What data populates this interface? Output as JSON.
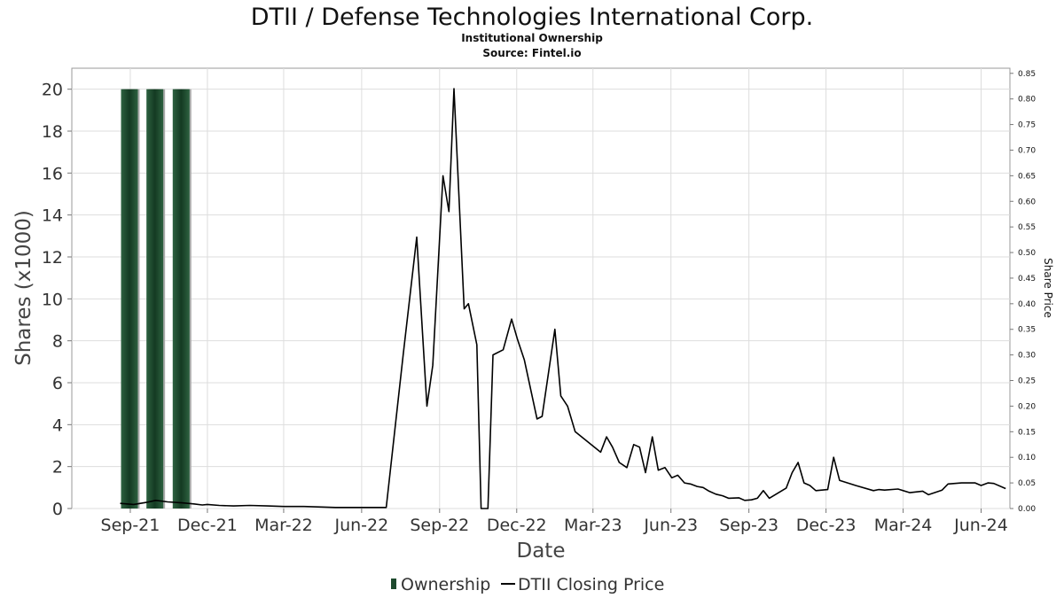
{
  "chart_data": {
    "type": "bar+line",
    "title": "DTII / Defense Technologies International Corp.",
    "subtitle": "Institutional Ownership",
    "source": "Source: Fintel.io",
    "xlabel": "Date",
    "ylabel_left": "Shares (x1000)",
    "ylabel_right": "Share Price",
    "x_range": [
      "2021-06-24",
      "2024-07-05"
    ],
    "ylim_left": [
      0,
      21
    ],
    "ylim_right": [
      0,
      0.86
    ],
    "yticks_left": [
      "0",
      "2",
      "4",
      "6",
      "8",
      "10",
      "12",
      "14",
      "16",
      "18",
      "20"
    ],
    "yticks_right": [
      "0.00",
      "0.05",
      "0.10",
      "0.15",
      "0.20",
      "0.25",
      "0.30",
      "0.35",
      "0.40",
      "0.45",
      "0.50",
      "0.55",
      "0.60",
      "0.65",
      "0.70",
      "0.75",
      "0.80",
      "0.85"
    ],
    "xticks": [
      {
        "label": "Sep-21",
        "date": "2021-09-01"
      },
      {
        "label": "Dec-21",
        "date": "2021-12-01"
      },
      {
        "label": "Mar-22",
        "date": "2022-03-01"
      },
      {
        "label": "Jun-22",
        "date": "2022-06-01"
      },
      {
        "label": "Sep-22",
        "date": "2022-09-01"
      },
      {
        "label": "Dec-22",
        "date": "2022-12-01"
      },
      {
        "label": "Mar-23",
        "date": "2023-03-01"
      },
      {
        "label": "Jun-23",
        "date": "2023-06-01"
      },
      {
        "label": "Sep-23",
        "date": "2023-09-01"
      },
      {
        "label": "Dec-23",
        "date": "2023-12-01"
      },
      {
        "label": "Mar-24",
        "date": "2024-03-01"
      },
      {
        "label": "Jun-24",
        "date": "2024-06-01"
      }
    ],
    "grid": true,
    "legend_position": "bottom-center",
    "series": [
      {
        "name": "Ownership",
        "type": "bar",
        "axis": "left",
        "color": "#1e4a2e",
        "points": [
          {
            "x": "2021-08-31",
            "y": 20
          },
          {
            "x": "2021-09-30",
            "y": 20
          },
          {
            "x": "2021-10-31",
            "y": 20
          }
        ]
      },
      {
        "name": "DTII Closing Price",
        "type": "line",
        "axis": "right",
        "color": "#000000",
        "points": [
          {
            "x": "2021-08-20",
            "y": 0.01
          },
          {
            "x": "2021-09-05",
            "y": 0.008
          },
          {
            "x": "2021-09-20",
            "y": 0.012
          },
          {
            "x": "2021-10-01",
            "y": 0.016
          },
          {
            "x": "2021-10-15",
            "y": 0.013
          },
          {
            "x": "2021-11-01",
            "y": 0.011
          },
          {
            "x": "2021-11-15",
            "y": 0.009
          },
          {
            "x": "2021-11-25",
            "y": 0.007
          },
          {
            "x": "2021-12-01",
            "y": 0.008
          },
          {
            "x": "2021-12-15",
            "y": 0.006
          },
          {
            "x": "2022-01-01",
            "y": 0.005
          },
          {
            "x": "2022-01-20",
            "y": 0.006
          },
          {
            "x": "2022-02-10",
            "y": 0.005
          },
          {
            "x": "2022-03-01",
            "y": 0.004
          },
          {
            "x": "2022-03-25",
            "y": 0.004
          },
          {
            "x": "2022-04-15",
            "y": 0.003
          },
          {
            "x": "2022-05-01",
            "y": 0.002
          },
          {
            "x": "2022-05-20",
            "y": 0.002
          },
          {
            "x": "2022-06-05",
            "y": 0.002
          },
          {
            "x": "2022-06-20",
            "y": 0.002
          },
          {
            "x": "2022-06-30",
            "y": 0.002
          },
          {
            "x": "2022-07-20",
            "y": 0.3
          },
          {
            "x": "2022-08-05",
            "y": 0.53
          },
          {
            "x": "2022-08-17",
            "y": 0.2
          },
          {
            "x": "2022-08-24",
            "y": 0.28
          },
          {
            "x": "2022-09-05",
            "y": 0.65
          },
          {
            "x": "2022-09-12",
            "y": 0.58
          },
          {
            "x": "2022-09-18",
            "y": 0.82
          },
          {
            "x": "2022-09-30",
            "y": 0.39
          },
          {
            "x": "2022-10-05",
            "y": 0.4
          },
          {
            "x": "2022-10-15",
            "y": 0.32
          },
          {
            "x": "2022-10-20",
            "y": 0.0
          },
          {
            "x": "2022-10-28",
            "y": 0.0
          },
          {
            "x": "2022-11-03",
            "y": 0.3
          },
          {
            "x": "2022-11-15",
            "y": 0.31
          },
          {
            "x": "2022-11-25",
            "y": 0.37
          },
          {
            "x": "2022-12-02",
            "y": 0.33
          },
          {
            "x": "2022-12-10",
            "y": 0.29
          },
          {
            "x": "2022-12-25",
            "y": 0.175
          },
          {
            "x": "2022-12-31",
            "y": 0.18
          },
          {
            "x": "2023-01-15",
            "y": 0.35
          },
          {
            "x": "2023-01-22",
            "y": 0.22
          },
          {
            "x": "2023-01-30",
            "y": 0.2
          },
          {
            "x": "2023-02-08",
            "y": 0.15
          },
          {
            "x": "2023-03-10",
            "y": 0.11
          },
          {
            "x": "2023-03-17",
            "y": 0.14
          },
          {
            "x": "2023-03-24",
            "y": 0.12
          },
          {
            "x": "2023-04-01",
            "y": 0.09
          },
          {
            "x": "2023-04-10",
            "y": 0.08
          },
          {
            "x": "2023-04-18",
            "y": 0.125
          },
          {
            "x": "2023-04-25",
            "y": 0.12
          },
          {
            "x": "2023-05-02",
            "y": 0.07
          },
          {
            "x": "2023-05-10",
            "y": 0.14
          },
          {
            "x": "2023-05-17",
            "y": 0.075
          },
          {
            "x": "2023-05-25",
            "y": 0.08
          },
          {
            "x": "2023-06-02",
            "y": 0.06
          },
          {
            "x": "2023-06-09",
            "y": 0.065
          },
          {
            "x": "2023-06-17",
            "y": 0.05
          },
          {
            "x": "2023-06-24",
            "y": 0.048
          },
          {
            "x": "2023-07-02",
            "y": 0.043
          },
          {
            "x": "2023-07-09",
            "y": 0.041
          },
          {
            "x": "2023-07-16",
            "y": 0.034
          },
          {
            "x": "2023-07-24",
            "y": 0.028
          },
          {
            "x": "2023-08-01",
            "y": 0.025
          },
          {
            "x": "2023-08-08",
            "y": 0.02
          },
          {
            "x": "2023-08-20",
            "y": 0.021
          },
          {
            "x": "2023-08-27",
            "y": 0.016
          },
          {
            "x": "2023-09-04",
            "y": 0.017
          },
          {
            "x": "2023-09-11",
            "y": 0.02
          },
          {
            "x": "2023-09-18",
            "y": 0.035
          },
          {
            "x": "2023-09-25",
            "y": 0.02
          },
          {
            "x": "2023-10-15",
            "y": 0.04
          },
          {
            "x": "2023-10-22",
            "y": 0.07
          },
          {
            "x": "2023-10-29",
            "y": 0.09
          },
          {
            "x": "2023-11-05",
            "y": 0.05
          },
          {
            "x": "2023-11-12",
            "y": 0.045
          },
          {
            "x": "2023-11-19",
            "y": 0.035
          },
          {
            "x": "2023-12-03",
            "y": 0.037
          },
          {
            "x": "2023-12-10",
            "y": 0.1
          },
          {
            "x": "2023-12-17",
            "y": 0.055
          },
          {
            "x": "2024-01-05",
            "y": 0.045
          },
          {
            "x": "2024-01-26",
            "y": 0.035
          },
          {
            "x": "2024-02-01",
            "y": 0.037
          },
          {
            "x": "2024-02-08",
            "y": 0.036
          },
          {
            "x": "2024-02-24",
            "y": 0.038
          },
          {
            "x": "2024-03-09",
            "y": 0.031
          },
          {
            "x": "2024-03-24",
            "y": 0.034
          },
          {
            "x": "2024-03-31",
            "y": 0.027
          },
          {
            "x": "2024-04-16",
            "y": 0.036
          },
          {
            "x": "2024-04-23",
            "y": 0.048
          },
          {
            "x": "2024-05-09",
            "y": 0.05
          },
          {
            "x": "2024-05-25",
            "y": 0.05
          },
          {
            "x": "2024-06-01",
            "y": 0.045
          },
          {
            "x": "2024-06-09",
            "y": 0.05
          },
          {
            "x": "2024-06-16",
            "y": 0.049
          },
          {
            "x": "2024-06-30",
            "y": 0.039
          }
        ]
      }
    ]
  }
}
